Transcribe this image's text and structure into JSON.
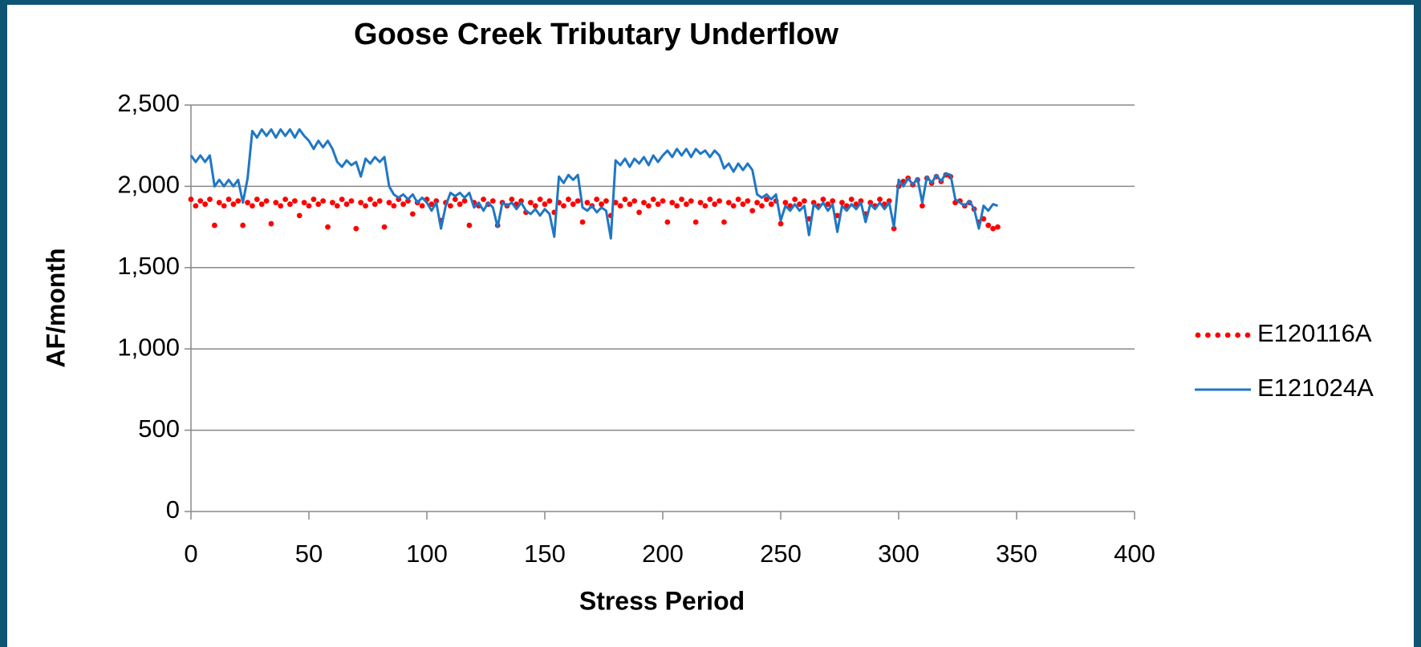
{
  "chart_data": {
    "type": "line",
    "title": "Goose Creek Tributary Underflow",
    "xlabel": "Stress Period",
    "ylabel": "AF/month",
    "x": [
      0,
      2,
      4,
      6,
      8,
      10,
      12,
      14,
      16,
      18,
      20,
      22,
      24,
      26,
      28,
      30,
      32,
      34,
      36,
      38,
      40,
      42,
      44,
      46,
      48,
      50,
      52,
      54,
      56,
      58,
      60,
      62,
      64,
      66,
      68,
      70,
      72,
      74,
      76,
      78,
      80,
      82,
      84,
      86,
      88,
      90,
      92,
      94,
      96,
      98,
      100,
      102,
      104,
      106,
      108,
      110,
      112,
      114,
      116,
      118,
      120,
      122,
      124,
      126,
      128,
      130,
      132,
      134,
      136,
      138,
      140,
      142,
      144,
      146,
      148,
      150,
      152,
      154,
      156,
      158,
      160,
      162,
      164,
      166,
      168,
      170,
      172,
      174,
      176,
      178,
      180,
      182,
      184,
      186,
      188,
      190,
      192,
      194,
      196,
      198,
      200,
      202,
      204,
      206,
      208,
      210,
      212,
      214,
      216,
      218,
      220,
      222,
      224,
      226,
      228,
      230,
      232,
      234,
      236,
      238,
      240,
      242,
      244,
      246,
      248,
      250,
      252,
      254,
      256,
      258,
      260,
      262,
      264,
      266,
      268,
      270,
      272,
      274,
      276,
      278,
      280,
      282,
      284,
      286,
      288,
      290,
      292,
      294,
      296,
      298,
      300,
      302,
      304,
      306,
      308,
      310,
      312,
      314,
      316,
      318,
      320,
      322,
      324,
      326,
      328,
      330,
      332,
      334,
      336,
      338,
      340,
      342
    ],
    "series": [
      {
        "name": "E120116A",
        "color": "#ff0000",
        "style": "dotted",
        "values": [
          1920,
          1880,
          1910,
          1890,
          1920,
          1760,
          1900,
          1880,
          1920,
          1890,
          1910,
          1760,
          1900,
          1880,
          1920,
          1890,
          1910,
          1770,
          1900,
          1880,
          1920,
          1890,
          1910,
          1820,
          1900,
          1880,
          1920,
          1890,
          1910,
          1750,
          1900,
          1880,
          1920,
          1890,
          1910,
          1740,
          1900,
          1880,
          1920,
          1890,
          1910,
          1750,
          1900,
          1880,
          1920,
          1890,
          1910,
          1830,
          1900,
          1880,
          1920,
          1890,
          1910,
          1790,
          1900,
          1880,
          1920,
          1890,
          1910,
          1760,
          1900,
          1880,
          1920,
          1890,
          1910,
          1760,
          1900,
          1880,
          1920,
          1890,
          1910,
          1840,
          1900,
          1880,
          1920,
          1890,
          1910,
          1840,
          1900,
          1880,
          1920,
          1890,
          1910,
          1780,
          1900,
          1880,
          1920,
          1890,
          1910,
          1820,
          1900,
          1880,
          1920,
          1890,
          1910,
          1840,
          1900,
          1880,
          1920,
          1890,
          1910,
          1780,
          1900,
          1880,
          1920,
          1890,
          1910,
          1780,
          1900,
          1880,
          1920,
          1890,
          1910,
          1780,
          1900,
          1880,
          1920,
          1890,
          1910,
          1850,
          1900,
          1880,
          1920,
          1890,
          1910,
          1770,
          1900,
          1880,
          1920,
          1890,
          1910,
          1800,
          1900,
          1880,
          1920,
          1890,
          1910,
          1820,
          1900,
          1880,
          1920,
          1890,
          1910,
          1830,
          1900,
          1880,
          1920,
          1890,
          1910,
          1740,
          2000,
          2030,
          2050,
          2010,
          2040,
          1880,
          2050,
          2020,
          2060,
          2030,
          2070,
          2060,
          1900,
          1910,
          1880,
          1900,
          1860,
          1780,
          1800,
          1760,
          1740,
          1750
        ]
      },
      {
        "name": "E121024A",
        "color": "#1f77c4",
        "style": "solid",
        "values": [
          2190,
          2150,
          2190,
          2150,
          2190,
          2000,
          2040,
          2000,
          2040,
          2000,
          2040,
          1900,
          2050,
          2340,
          2300,
          2350,
          2310,
          2350,
          2300,
          2350,
          2310,
          2350,
          2300,
          2350,
          2310,
          2280,
          2230,
          2280,
          2240,
          2280,
          2230,
          2150,
          2120,
          2160,
          2130,
          2150,
          2060,
          2170,
          2140,
          2180,
          2150,
          2180,
          2000,
          1950,
          1930,
          1950,
          1920,
          1950,
          1900,
          1930,
          1900,
          1850,
          1900,
          1740,
          1880,
          1960,
          1940,
          1960,
          1930,
          1960,
          1870,
          1900,
          1850,
          1900,
          1870,
          1750,
          1900,
          1880,
          1900,
          1860,
          1900,
          1850,
          1830,
          1860,
          1820,
          1860,
          1830,
          1690,
          2060,
          2020,
          2070,
          2040,
          2070,
          1870,
          1850,
          1880,
          1840,
          1870,
          1850,
          1680,
          2160,
          2130,
          2170,
          2120,
          2170,
          2140,
          2180,
          2130,
          2190,
          2150,
          2190,
          2220,
          2180,
          2230,
          2190,
          2230,
          2180,
          2230,
          2200,
          2220,
          2180,
          2220,
          2190,
          2110,
          2140,
          2090,
          2140,
          2100,
          2140,
          2100,
          1950,
          1930,
          1950,
          1920,
          1950,
          1790,
          1880,
          1850,
          1890,
          1850,
          1880,
          1700,
          1890,
          1860,
          1900,
          1850,
          1890,
          1720,
          1880,
          1850,
          1890,
          1860,
          1900,
          1780,
          1890,
          1860,
          1900,
          1860,
          1900,
          1750,
          2040,
          2000,
          2050,
          2010,
          2050,
          1900,
          2060,
          2020,
          2070,
          2030,
          2080,
          2070,
          1920,
          1900,
          1880,
          1910,
          1860,
          1740,
          1880,
          1850,
          1890,
          1880
        ]
      }
    ],
    "xlim": [
      0,
      400
    ],
    "xticks": [
      0,
      50,
      100,
      150,
      200,
      250,
      300,
      350,
      400
    ],
    "ylim": [
      0,
      2500
    ],
    "yticks": [
      0,
      {
        "value": 500,
        "label": "500"
      },
      {
        "value": 1000,
        "label": "1,000"
      },
      {
        "value": 1500,
        "label": "1,500"
      },
      {
        "value": 2000,
        "label": "2,000"
      },
      {
        "value": 2500,
        "label": "2,500"
      }
    ],
    "grid": true,
    "legend": "right"
  }
}
